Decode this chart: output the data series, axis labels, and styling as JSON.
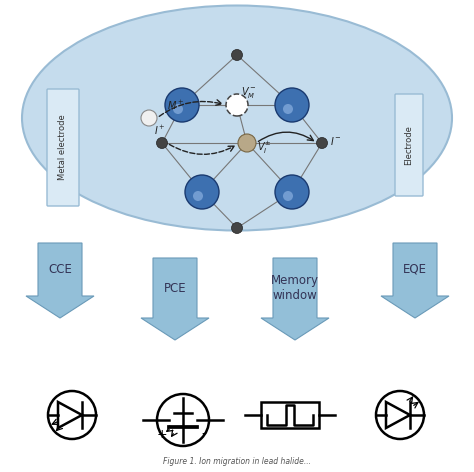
{
  "bg_color": "#ffffff",
  "ellipse_color": "#c5dced",
  "ellipse_border": "#99bbd4",
  "arrow_color": "#93bfd8",
  "arrow_edge": "#6a9ab8",
  "blue_ball_color": "#3a6eaa",
  "blue_ball_edge": "#1a3a6a",
  "electrode_box_color": "#daeaf5",
  "electrode_box_edge": "#99bbd4",
  "labels": [
    "CCE",
    "PCE",
    "Memory\nwindow",
    "EQE"
  ],
  "metal_electrode_text": "Metal electrode",
  "electrode_text": "Electrode",
  "caption": "Figure 1. Ion migration in lead halide perovskites..."
}
